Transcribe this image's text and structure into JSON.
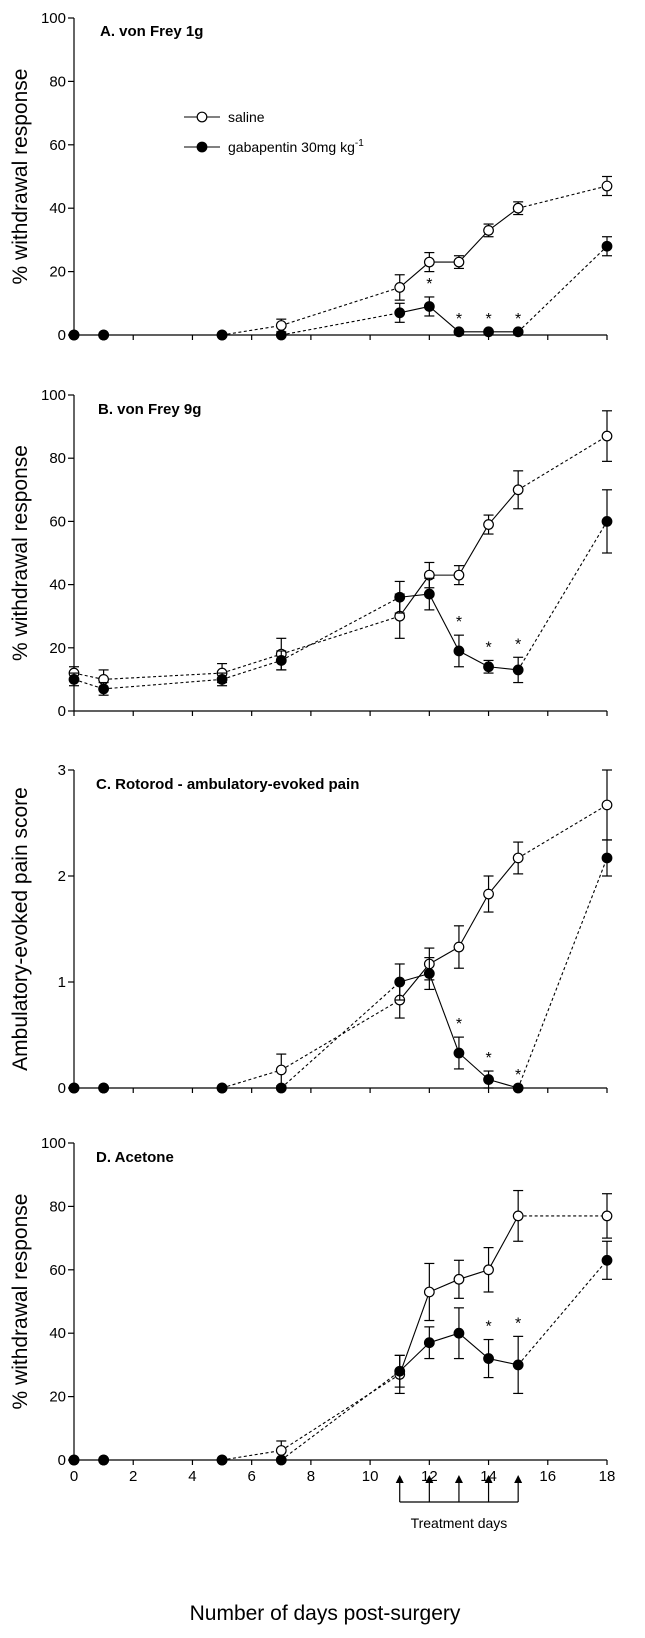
{
  "chart_data": [
    {
      "type": "line",
      "title": "A.  von Frey 1g",
      "ylabel": "% withdrawal response",
      "ylim": [
        0,
        100
      ],
      "yticks": [
        0,
        20,
        40,
        60,
        80,
        100
      ],
      "series": [
        {
          "name": "saline",
          "marker": "open-circle",
          "x": [
            0,
            1,
            5,
            7,
            11,
            12,
            13,
            14,
            15,
            18
          ],
          "values": [
            0,
            0,
            0,
            3,
            15,
            23,
            23,
            33,
            40,
            47
          ],
          "errors": [
            0,
            0,
            0,
            2,
            4,
            3,
            2,
            2,
            2,
            3
          ]
        },
        {
          "name": "gabapentin 30mg kg",
          "marker": "filled-circle",
          "x": [
            0,
            1,
            5,
            7,
            11,
            12,
            13,
            14,
            15,
            18
          ],
          "values": [
            0,
            0,
            0,
            0,
            7,
            9,
            1,
            1,
            1,
            28
          ],
          "errors": [
            0,
            0,
            0,
            0,
            3,
            3,
            0,
            0,
            0,
            3
          ]
        }
      ],
      "asterisks_x": [
        12,
        13,
        14,
        15
      ]
    },
    {
      "type": "line",
      "title": "B.  von Frey 9g",
      "ylabel": "% withdrawal response",
      "ylim": [
        0,
        100
      ],
      "yticks": [
        0,
        20,
        40,
        60,
        80,
        100
      ],
      "series": [
        {
          "name": "saline",
          "marker": "open-circle",
          "x": [
            0,
            1,
            5,
            7,
            11,
            12,
            13,
            14,
            15,
            18
          ],
          "values": [
            12,
            10,
            12,
            18,
            30,
            43,
            43,
            59,
            70,
            87
          ],
          "errors": [
            2,
            3,
            3,
            5,
            7,
            4,
            3,
            3,
            6,
            8
          ]
        },
        {
          "name": "gabapentin 30mg kg",
          "marker": "filled-circle",
          "x": [
            0,
            1,
            5,
            7,
            11,
            12,
            13,
            14,
            15,
            18
          ],
          "values": [
            10,
            7,
            10,
            16,
            36,
            37,
            19,
            14,
            13,
            60
          ],
          "errors": [
            2,
            2,
            2,
            3,
            5,
            5,
            5,
            2,
            4,
            10
          ]
        }
      ],
      "asterisks_x": [
        13,
        14,
        15
      ]
    },
    {
      "type": "line",
      "title": "C.   Rotorod  -  ambulatory-evoked pain",
      "ylabel": "Ambulatory-evoked pain score",
      "ylim": [
        0,
        3
      ],
      "yticks": [
        0,
        1,
        2,
        3
      ],
      "series": [
        {
          "name": "saline",
          "marker": "open-circle",
          "x": [
            0,
            1,
            5,
            7,
            11,
            12,
            13,
            14,
            15,
            18
          ],
          "values": [
            0,
            0,
            0,
            0.17,
            0.83,
            1.17,
            1.33,
            1.83,
            2.17,
            2.67
          ],
          "errors": [
            0,
            0,
            0,
            0.15,
            0.17,
            0.15,
            0.2,
            0.17,
            0.15,
            0.33
          ]
        },
        {
          "name": "gabapentin 30mg kg",
          "marker": "filled-circle",
          "x": [
            0,
            1,
            5,
            7,
            11,
            12,
            13,
            14,
            15,
            18
          ],
          "values": [
            0,
            0,
            0,
            0,
            1.0,
            1.08,
            0.33,
            0.08,
            0,
            2.17
          ],
          "errors": [
            0,
            0,
            0,
            0,
            0.17,
            0.15,
            0.15,
            0.08,
            0,
            0.17
          ]
        }
      ],
      "asterisks_x": [
        13,
        14,
        15
      ]
    },
    {
      "type": "line",
      "title": "D.   Acetone",
      "ylabel": "% withdrawal response",
      "ylim": [
        0,
        100
      ],
      "yticks": [
        0,
        20,
        40,
        60,
        80,
        100
      ],
      "xlim": [
        0,
        18
      ],
      "xticks": [
        0,
        2,
        4,
        6,
        8,
        10,
        12,
        14,
        16,
        18
      ],
      "series": [
        {
          "name": "saline",
          "marker": "open-circle",
          "x": [
            0,
            1,
            5,
            7,
            11,
            12,
            13,
            14,
            15,
            18
          ],
          "values": [
            0,
            0,
            0,
            3,
            27,
            53,
            57,
            60,
            77,
            77
          ],
          "errors": [
            0,
            0,
            0,
            3,
            6,
            9,
            6,
            7,
            8,
            7
          ]
        },
        {
          "name": "gabapentin 30mg kg",
          "marker": "filled-circle",
          "x": [
            0,
            1,
            5,
            7,
            11,
            12,
            13,
            14,
            15,
            18
          ],
          "values": [
            0,
            0,
            0,
            0,
            28,
            37,
            40,
            32,
            30,
            63
          ],
          "errors": [
            0,
            0,
            0,
            0,
            5,
            5,
            8,
            6,
            9,
            6
          ]
        }
      ],
      "asterisks_x": [
        14,
        15
      ]
    }
  ],
  "legend": {
    "saline_label": "saline",
    "gabapentin_label": "gabapentin 30mg kg",
    "gabapentin_sup": "-1"
  },
  "treatment": {
    "label": "Treatment days",
    "days": [
      11,
      12,
      13,
      14,
      15
    ]
  },
  "xlabel": "Number of days post-surgery",
  "asterisk_symbol": "*"
}
